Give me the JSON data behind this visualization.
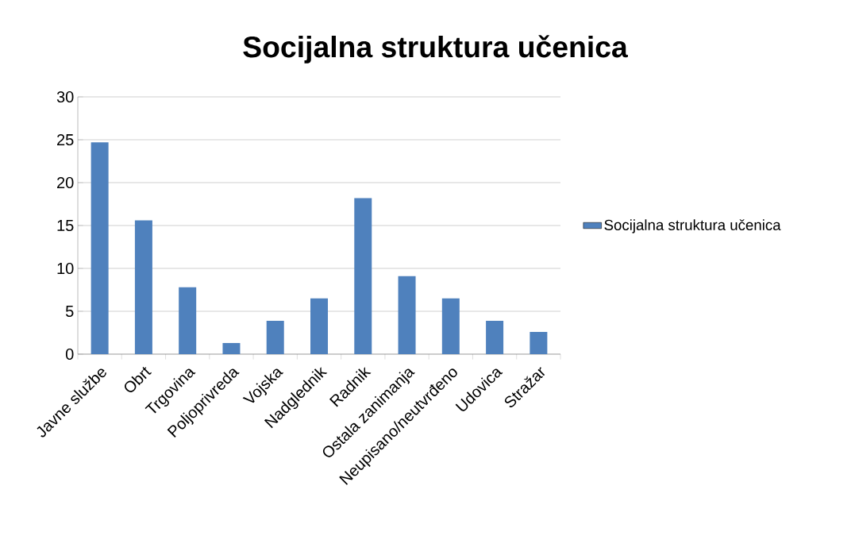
{
  "chart_data": {
    "type": "bar",
    "title": "Socijalna struktura učenica",
    "categories": [
      "Javne službe",
      "Obrt",
      "Trgovina",
      "Poljoprivreda",
      "Vojska",
      "Nadglednik",
      "Radnik",
      "Ostala zanimanja",
      "Neupisano/neutvrđeno",
      "Udovica",
      "Stražar"
    ],
    "series": [
      {
        "name": "Socijalna struktura učenica",
        "color": "#4f81bd",
        "values": [
          24.7,
          15.6,
          7.8,
          1.3,
          3.9,
          6.5,
          18.2,
          9.1,
          6.5,
          3.9,
          2.6
        ]
      }
    ],
    "ylim": [
      0,
      30
    ],
    "yticks": [
      0,
      5,
      10,
      15,
      20,
      25,
      30
    ],
    "grid": "y",
    "legend": "right"
  }
}
